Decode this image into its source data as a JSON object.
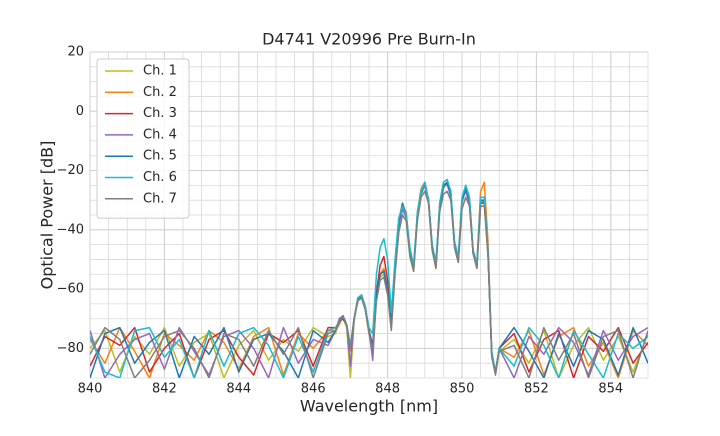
{
  "chart_data": {
    "type": "line",
    "title": "D4741 V20996 Pre Burn-In",
    "xlabel": "Wavelength [nm]",
    "ylabel": "Optical Power [dB]",
    "xlim": [
      840,
      855
    ],
    "ylim": [
      -90,
      20
    ],
    "xticks": [
      840,
      842,
      844,
      846,
      848,
      850,
      852,
      854
    ],
    "yticks": [
      {
        "value": -80,
        "label": "−80"
      },
      {
        "value": -60,
        "label": "−60"
      },
      {
        "value": -40,
        "label": "−40"
      },
      {
        "value": -20,
        "label": "−20"
      },
      0,
      20
    ],
    "xgrid": [
      840,
      840.5,
      841,
      841.5,
      842,
      842.5,
      843,
      843.5,
      844,
      844.5,
      845,
      845.5,
      846,
      846.5,
      847,
      847.5,
      848,
      848.5,
      849,
      849.5,
      850,
      850.5,
      851,
      851.5,
      852,
      852.5,
      853,
      853.5,
      854,
      854.5,
      855
    ],
    "ygrid": [
      -90,
      -85,
      -80,
      -75,
      -70,
      -65,
      -60,
      -55,
      -50,
      -45,
      -40,
      -35,
      -30,
      -25,
      -20,
      -15,
      -10,
      -5,
      0,
      5,
      10,
      15,
      20
    ],
    "grid": true,
    "legend": "upper left",
    "x": [
      840,
      840.4,
      840.8,
      841.2,
      841.6,
      842,
      842.4,
      842.8,
      843.2,
      843.6,
      844,
      844.4,
      844.8,
      845.2,
      845.6,
      846,
      846.4,
      846.6,
      846.7,
      846.8,
      846.9,
      847,
      847.1,
      847.2,
      847.3,
      847.4,
      847.5,
      847.6,
      847.7,
      847.8,
      847.9,
      848,
      848.1,
      848.2,
      848.3,
      848.4,
      848.5,
      848.6,
      848.7,
      848.8,
      848.9,
      849,
      849.1,
      849.2,
      849.3,
      849.4,
      849.5,
      849.6,
      849.7,
      849.8,
      849.9,
      850,
      850.1,
      850.2,
      850.3,
      850.4,
      850.5,
      850.6,
      850.7,
      850.8,
      850.9,
      851,
      851.4,
      851.8,
      852.2,
      852.6,
      853,
      853.4,
      853.8,
      854.2,
      854.6,
      855
    ],
    "series": [
      {
        "name": "Ch. 1",
        "color": "#bcbd22",
        "values": [
          -80,
          -74,
          -88,
          -76,
          -82,
          -73,
          -86,
          -78,
          -75,
          -90,
          -79,
          -74,
          -84,
          -77,
          -81,
          -73,
          -76,
          -75,
          -71,
          -70,
          -73,
          -90,
          -71,
          -63,
          -62,
          -67,
          -75,
          -81,
          -63,
          -56,
          -55,
          -61,
          -73,
          -53,
          -37,
          -31,
          -35,
          -49,
          -54,
          -34,
          -26,
          -24,
          -31,
          -47,
          -53,
          -31,
          -24,
          -23,
          -28,
          -46,
          -51,
          -30,
          -25,
          -29,
          -47,
          -53,
          -29,
          -29,
          -47,
          -83,
          -89,
          -81,
          -77,
          -85,
          -74,
          -90,
          -79,
          -73,
          -84,
          -76,
          -88,
          -75
        ]
      },
      {
        "name": "Ch. 2",
        "color": "#ff7f0e",
        "values": [
          -77,
          -85,
          -73,
          -81,
          -90,
          -75,
          -79,
          -84,
          -74,
          -78,
          -87,
          -76,
          -73,
          -89,
          -75,
          -80,
          -74,
          -74,
          -72,
          -69,
          -72,
          -81,
          -70,
          -64,
          -62,
          -66,
          -74,
          -80,
          -63,
          -55,
          -53,
          -60,
          -72,
          -51,
          -38,
          -32,
          -34,
          -48,
          -53,
          -35,
          -27,
          -25,
          -30,
          -46,
          -52,
          -33,
          -25,
          -25,
          -28,
          -45,
          -50,
          -31,
          -26,
          -30,
          -48,
          -52,
          -27,
          -24,
          -44,
          -82,
          -88,
          -80,
          -83,
          -74,
          -89,
          -76,
          -73,
          -86,
          -78,
          -90,
          -74,
          -79
        ]
      },
      {
        "name": "Ch. 3",
        "color": "#d62728",
        "values": [
          -86,
          -76,
          -79,
          -73,
          -88,
          -80,
          -75,
          -90,
          -77,
          -74,
          -83,
          -89,
          -75,
          -78,
          -74,
          -86,
          -73,
          -73,
          -71,
          -69,
          -72,
          -80,
          -70,
          -63,
          -62,
          -66,
          -74,
          -79,
          -61,
          -52,
          -49,
          -57,
          -72,
          -52,
          -38,
          -32,
          -35,
          -48,
          -53,
          -35,
          -27,
          -24,
          -30,
          -46,
          -52,
          -32,
          -25,
          -24,
          -28,
          -45,
          -50,
          -30,
          -26,
          -30,
          -48,
          -52,
          -31,
          -31,
          -48,
          -82,
          -88,
          -80,
          -75,
          -88,
          -77,
          -74,
          -90,
          -76,
          -81,
          -73,
          -85,
          -78
        ]
      },
      {
        "name": "Ch. 4",
        "color": "#9467bd",
        "values": [
          -74,
          -90,
          -82,
          -77,
          -75,
          -87,
          -73,
          -81,
          -89,
          -76,
          -74,
          -80,
          -90,
          -73,
          -85,
          -77,
          -79,
          -74,
          -70,
          -69,
          -72,
          -86,
          -70,
          -63,
          -63,
          -66,
          -74,
          -84,
          -62,
          -55,
          -54,
          -60,
          -72,
          -53,
          -39,
          -33,
          -36,
          -48,
          -53,
          -36,
          -28,
          -25,
          -30,
          -46,
          -52,
          -32,
          -26,
          -24,
          -29,
          -45,
          -50,
          -30,
          -27,
          -31,
          -48,
          -53,
          -31,
          -30,
          -48,
          -82,
          -89,
          -80,
          -90,
          -76,
          -82,
          -73,
          -78,
          -89,
          -74,
          -84,
          -76,
          -73
        ]
      },
      {
        "name": "Ch. 5",
        "color": "#1f77b4",
        "values": [
          -90,
          -75,
          -73,
          -85,
          -78,
          -74,
          -90,
          -76,
          -82,
          -73,
          -88,
          -77,
          -75,
          -81,
          -90,
          -74,
          -78,
          -74,
          -71,
          -70,
          -72,
          -80,
          -70,
          -64,
          -62,
          -66,
          -74,
          -80,
          -62,
          -55,
          -54,
          -60,
          -72,
          -52,
          -37,
          -31,
          -35,
          -48,
          -53,
          -35,
          -27,
          -24,
          -30,
          -46,
          -52,
          -32,
          -25,
          -24,
          -28,
          -45,
          -50,
          -30,
          -26,
          -30,
          -48,
          -52,
          -30,
          -30,
          -48,
          -82,
          -88,
          -80,
          -73,
          -81,
          -90,
          -75,
          -86,
          -74,
          -77,
          -89,
          -73,
          -85
        ]
      },
      {
        "name": "Ch. 6",
        "color": "#17becf",
        "values": [
          -76,
          -88,
          -90,
          -74,
          -73,
          -83,
          -77,
          -90,
          -74,
          -86,
          -75,
          -73,
          -79,
          -90,
          -76,
          -88,
          -74,
          -73,
          -71,
          -69,
          -72,
          -79,
          -70,
          -63,
          -62,
          -66,
          -73,
          -75,
          -55,
          -46,
          -43,
          -50,
          -68,
          -50,
          -36,
          -32,
          -35,
          -46,
          -52,
          -34,
          -27,
          -24,
          -30,
          -45,
          -51,
          -31,
          -24,
          -23,
          -27,
          -44,
          -49,
          -29,
          -25,
          -29,
          -47,
          -51,
          -29,
          -29,
          -47,
          -81,
          -88,
          -80,
          -86,
          -73,
          -79,
          -90,
          -74,
          -82,
          -90,
          -75,
          -80,
          -76
        ]
      },
      {
        "name": "Ch. 7",
        "color": "#7f7f7f",
        "values": [
          -82,
          -73,
          -77,
          -90,
          -84,
          -76,
          -74,
          -80,
          -90,
          -75,
          -77,
          -86,
          -74,
          -82,
          -73,
          -90,
          -75,
          -74,
          -71,
          -69,
          -72,
          -80,
          -70,
          -64,
          -63,
          -67,
          -75,
          -81,
          -64,
          -57,
          -56,
          -62,
          -74,
          -55,
          -41,
          -35,
          -37,
          -49,
          -54,
          -37,
          -29,
          -27,
          -31,
          -47,
          -53,
          -34,
          -28,
          -27,
          -30,
          -46,
          -51,
          -33,
          -29,
          -32,
          -48,
          -53,
          -32,
          -32,
          -49,
          -83,
          -88,
          -81,
          -79,
          -90,
          -73,
          -84,
          -75,
          -90,
          -76,
          -74,
          -90,
          -74
        ]
      }
    ]
  }
}
